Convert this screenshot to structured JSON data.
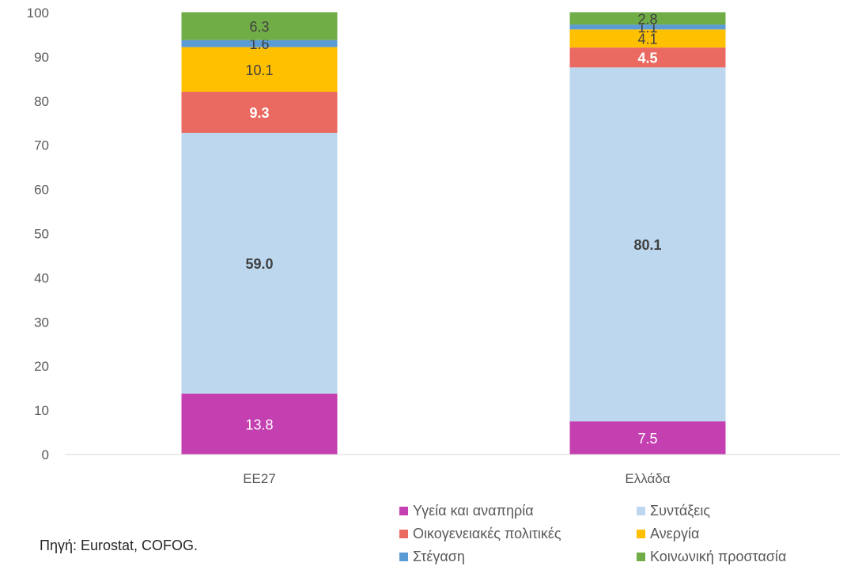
{
  "chart_data": {
    "type": "bar",
    "stacked": true,
    "categories": [
      "ΕΕ27",
      "Ελλάδα"
    ],
    "ylim": [
      0,
      100
    ],
    "yticks": [
      0,
      10,
      20,
      30,
      40,
      50,
      60,
      70,
      80,
      90,
      100
    ],
    "grid": false,
    "legend_position": "bottom-right",
    "series": [
      {
        "name": "Υγεία και αναπηρία",
        "color": "#c43fb0",
        "label_color": "#ffffff",
        "bold": false,
        "values": [
          13.8,
          7.5
        ],
        "labels": [
          "13.8",
          "7.5"
        ]
      },
      {
        "name": "Συντάξεις",
        "color": "#bdd7ee",
        "label_color": "#404040",
        "bold": true,
        "values": [
          59.0,
          80.1
        ],
        "labels": [
          "59.0",
          "80.1"
        ]
      },
      {
        "name": "Οικογενειακές πολιτικές",
        "color": "#ea6a62",
        "label_color": "#ffffff",
        "bold": true,
        "values": [
          9.3,
          4.5
        ],
        "labels": [
          "9.3",
          "4.5"
        ]
      },
      {
        "name": "Ανεργία",
        "color": "#ffc000",
        "label_color": "#404040",
        "bold": false,
        "values": [
          10.1,
          4.1
        ],
        "labels": [
          "10.1",
          "4.1"
        ]
      },
      {
        "name": "Στέγαση",
        "color": "#5b9bd5",
        "label_color": "#404040",
        "bold": false,
        "values": [
          1.6,
          1.1
        ],
        "labels": [
          "1.6",
          "1.1"
        ]
      },
      {
        "name": "Κοινωνική προστασία",
        "color": "#70ad47",
        "label_color": "#404040",
        "bold": false,
        "values": [
          6.3,
          2.8
        ],
        "labels": [
          "6.3",
          "2.8"
        ]
      }
    ]
  },
  "source_note": "Πηγή: Eurostat, COFOG."
}
